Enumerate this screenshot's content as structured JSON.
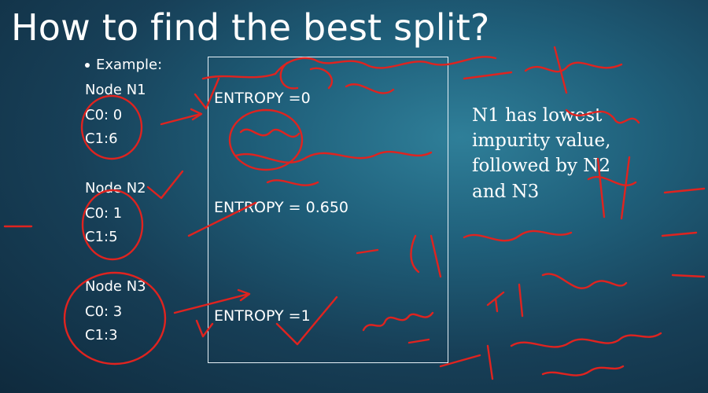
{
  "slide": {
    "title": "How to find the best split?",
    "example_label": "Example:",
    "nodes": [
      {
        "name": "Node N1",
        "c0": "C0: 0",
        "c1": "C1:6",
        "entropy": "ENTROPY =0"
      },
      {
        "name": "Node N2",
        "c0": "C0: 1",
        "c1": "C1:5",
        "entropy": "ENTROPY = 0.650"
      },
      {
        "name": "Node N3",
        "c0": "C0: 3",
        "c1": "C1:3",
        "entropy": "ENTROPY =1"
      }
    ],
    "conclusion": "N1 has lowest impurity value, followed by N2 and N3"
  },
  "colors": {
    "background": "#1f5f7a",
    "text": "#ffffff",
    "box_border": "#e8f2f8",
    "annotation_ink": "#e0231f"
  }
}
